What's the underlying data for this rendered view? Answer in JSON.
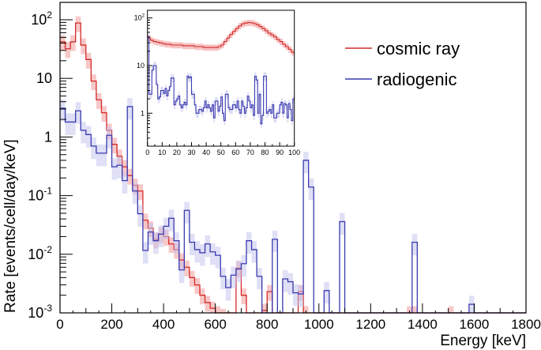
{
  "chart_data": {
    "type": "histogram-line",
    "title": "",
    "xlabel": "Energy [keV]",
    "ylabel": "Rate [events/cell/day/keV]",
    "xlim": [
      0,
      1800
    ],
    "ylim": [
      0.001,
      200
    ],
    "yscale": "log",
    "bin_width": 20,
    "x_ticks": [
      "0",
      "200",
      "400",
      "600",
      "800",
      "1000",
      "1200",
      "1400",
      "1600",
      "1800"
    ],
    "y_ticks": [
      {
        "value": 100,
        "base": "10",
        "exp": "2"
      },
      {
        "value": 10,
        "base": "10",
        "exp": ""
      },
      {
        "value": 1,
        "base": "1",
        "exp": ""
      },
      {
        "value": 0.1,
        "base": "10",
        "exp": "-1"
      },
      {
        "value": 0.01,
        "base": "10",
        "exp": "-2"
      },
      {
        "value": 0.001,
        "base": "10",
        "exp": "-3"
      }
    ],
    "legend": {
      "placement": "top-right"
    },
    "series": [
      {
        "name": "cosmic ray",
        "color": "#d42a2a",
        "band_color": "#f29a9a",
        "band_rel_err": 0.3,
        "values": [
          42,
          32,
          42,
          88,
          37,
          21,
          9,
          4.3,
          2.6,
          1.3,
          0.75,
          0.47,
          0.31,
          0.22,
          0.15,
          0.12,
          0.038,
          0.028,
          0.018,
          0.022,
          0.02,
          0.015,
          0.012,
          0.008,
          0.006,
          0.004,
          0.003,
          0.002,
          0.0015,
          0.0012,
          0.001,
          0.0009,
          0.0008,
          0,
          0.0058,
          0.002,
          0,
          0,
          0,
          0.0011,
          0.0023,
          0,
          0,
          0,
          0,
          0,
          0.0023,
          0.001,
          0,
          0,
          0,
          0,
          0,
          0,
          0,
          0,
          0,
          0,
          0,
          0,
          0,
          0,
          0,
          0,
          0,
          0,
          0,
          0.001,
          0.001,
          0,
          0,
          0,
          0,
          0,
          0,
          0.001,
          0,
          0,
          0,
          0,
          0,
          0,
          0,
          0,
          0,
          0,
          0,
          0,
          0,
          0
        ]
      },
      {
        "name": "radiogenic",
        "color": "#3a3ab0",
        "band_color": "#c4c4ee",
        "band_rel_err": 0.4,
        "values": [
          3.1,
          1.8,
          1.8,
          2.8,
          1.3,
          1.1,
          0.7,
          0.53,
          0.53,
          1.07,
          0.31,
          0.33,
          0.18,
          3.3,
          0.12,
          0.049,
          0.0116,
          0.024,
          0.017,
          0.022,
          0.03,
          0.041,
          0.017,
          0.0054,
          0.056,
          0.016,
          0.012,
          0.0106,
          0.015,
          0.011,
          0.0096,
          0.0042,
          0.0027,
          0.0044,
          0.0056,
          0.0069,
          0.017,
          0.012,
          0.0042,
          0,
          0,
          0.018,
          0,
          0.0038,
          0.0034,
          0.0022,
          0.0021,
          0.4,
          0.14,
          0,
          0,
          0.0024,
          0,
          0,
          0.036,
          0,
          0,
          0,
          0,
          0,
          0,
          0,
          0,
          0,
          0,
          0,
          0,
          0,
          0.016,
          0,
          0,
          0,
          0,
          0,
          0,
          0,
          0,
          0,
          0,
          0.0014,
          0,
          0,
          0,
          0,
          0,
          0,
          0,
          0,
          0,
          0
        ]
      }
    ],
    "inset": {
      "xlim": [
        0,
        100
      ],
      "ylim": [
        0.2,
        145
      ],
      "yscale": "log",
      "x_ticks": [
        "0",
        "10",
        "20",
        "30",
        "40",
        "50",
        "60",
        "70",
        "80",
        "90",
        "100"
      ],
      "y_ticks": [
        {
          "value": 100,
          "base": "10",
          "exp": "2"
        },
        {
          "value": 10,
          "base": "10",
          "exp": ""
        },
        {
          "value": 1,
          "base": "1",
          "exp": ""
        }
      ],
      "series": [
        {
          "name": "cosmic ray",
          "bin_width": 2,
          "band_rel_err": 0.15,
          "values": [
            38,
            34,
            32,
            31,
            30,
            29,
            28,
            28,
            27,
            27,
            27,
            27,
            26,
            26,
            26,
            26,
            25,
            25,
            25,
            24,
            24,
            24,
            24,
            24,
            25,
            27,
            32,
            38,
            45,
            52,
            60,
            68,
            75,
            78,
            80,
            79,
            76,
            72,
            66,
            60,
            54,
            48,
            44,
            40,
            35,
            32,
            28,
            25,
            22,
            19
          ]
        },
        {
          "name": "radiogenic",
          "bin_width": 1,
          "band_rel_err": 0.2,
          "values": [
            40,
            2.5,
            2.5,
            8,
            10,
            10,
            4,
            2,
            2.2,
            3,
            3,
            2.6,
            3.3,
            2.3,
            3,
            3.6,
            5.5,
            5.5,
            1.5,
            1.8,
            2,
            2.3,
            1.5,
            1.3,
            1.5,
            1.7,
            1.5,
            6,
            5.5,
            5.8,
            2.5,
            2.5,
            1.5,
            1.0,
            1.0,
            1.2,
            1.2,
            1.1,
            1.3,
            1.8,
            1.3,
            1.5,
            1.3,
            1.1,
            1.5,
            0.8,
            1.8,
            1.8,
            1.1,
            1.4,
            2.2,
            1.0,
            0.7,
            2.5,
            2.5,
            1.3,
            1.2,
            1.2,
            1.5,
            1.5,
            1.3,
            1.8,
            1.2,
            1.0,
            1.8,
            1.4,
            1.0,
            1.3,
            2.3,
            1.8,
            1.3,
            1.5,
            0.9,
            6,
            5,
            1.0,
            2.5,
            0.6,
            0.9,
            6,
            6,
            1.0,
            1.1,
            1.2,
            1.0,
            1.5,
            0.8,
            0.8,
            1.0,
            1.0,
            1.5,
            1.7,
            1.0,
            1.6,
            1.5,
            0.8,
            1.6,
            1.2,
            0.7,
            2.0
          ]
        }
      ]
    }
  }
}
